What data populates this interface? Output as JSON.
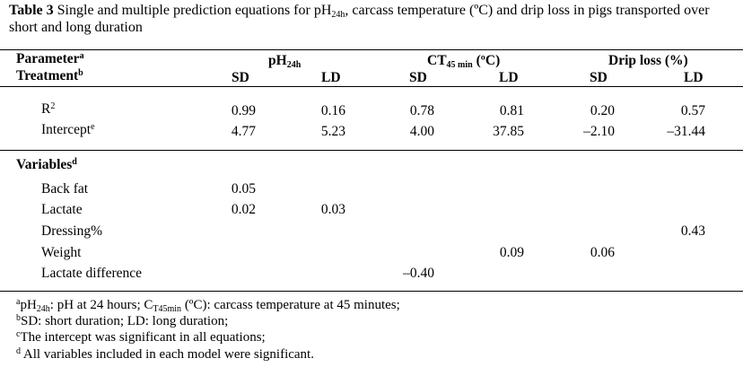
{
  "caption": {
    "label": "Table 3",
    "text": " Single and multiple prediction equations for pH",
    "sub": "24h",
    "text2": ", carcass temperature (ºC) and drip loss in pigs transported over short and long duration"
  },
  "header": {
    "parameter": "Parameter",
    "parameter_sup": "a",
    "treatment": "Treatment",
    "treatment_sup": "b",
    "ph_label": "pH",
    "ph_sub": "24h",
    "ct_label": "CT",
    "ct_sub": "45 min",
    "ct_unit": " (ºC)",
    "drip_label": "Drip loss (%)",
    "sd": "SD",
    "ld": "LD"
  },
  "stats": {
    "r2_label": "R",
    "r2_sup": "2",
    "r2_values": [
      "0.99",
      "0.16",
      "0.78",
      "0.81",
      "0.20",
      "0.57"
    ],
    "intercept_label": "Intercept",
    "intercept_sup": "e",
    "intercept_values": [
      "4.77",
      "5.23",
      "4.00",
      "37.85",
      "–2.10",
      "–31.44"
    ]
  },
  "variables": {
    "heading": "Variables",
    "heading_sup": "d",
    "rows": [
      {
        "label": "Back fat",
        "values": [
          "0.05",
          "",
          "",
          "",
          "",
          ""
        ]
      },
      {
        "label": "Lactate",
        "values": [
          "0.02",
          "0.03",
          "",
          "",
          "",
          ""
        ]
      },
      {
        "label": "Dressing%",
        "values": [
          "",
          "",
          "",
          "",
          "",
          "0.43"
        ]
      },
      {
        "label": "Weight",
        "values": [
          "",
          "",
          "",
          "0.09",
          "0.06",
          ""
        ]
      },
      {
        "label": "Lactate difference",
        "values": [
          "",
          "",
          "–0.40",
          "",
          "",
          ""
        ]
      }
    ]
  },
  "footnotes": {
    "a_sup": "a",
    "a_text1": "pH",
    "a_sub1": "24h",
    "a_text2": ": pH at 24 hours;  C",
    "a_sub2": "T45min",
    "a_text3": " (ºC): carcass temperature at 45 minutes;",
    "b_sup": "b",
    "b_text": "SD: short duration; LD:  long duration;",
    "c_sup": "c",
    "c_text": "The intercept was significant in all equations;",
    "d_sup": "d",
    "d_text": " All variables included in each model were significant."
  }
}
